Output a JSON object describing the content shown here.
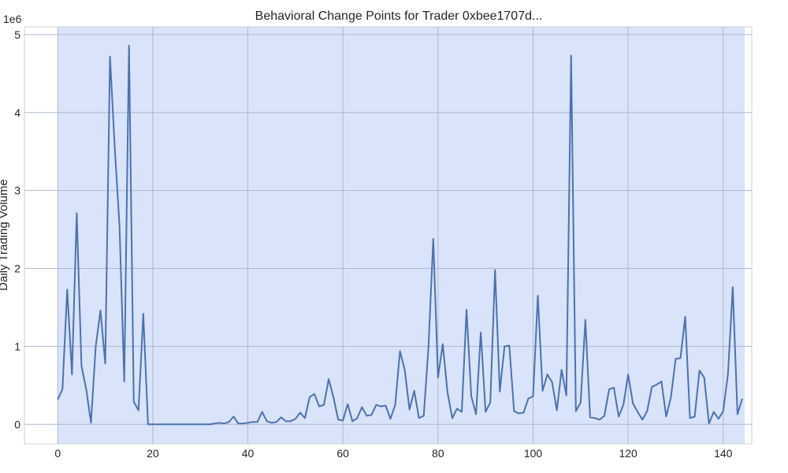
{
  "chart_data": {
    "type": "line",
    "title": "Behavioral Change Points for Trader 0xbee1707d...",
    "xlabel": "",
    "ylabel": "Daily Trading Volume",
    "y_multiplier_label": "1e6",
    "xlim": [
      -7,
      146
    ],
    "ylim": [
      -0.25,
      5.1
    ],
    "x_ticks": [
      0,
      20,
      40,
      60,
      80,
      100,
      120,
      140
    ],
    "y_ticks": [
      0,
      1,
      2,
      3,
      4,
      5
    ],
    "x_tick_labels": [
      "0",
      "20",
      "40",
      "60",
      "80",
      "100",
      "120",
      "140"
    ],
    "y_tick_labels": [
      "0",
      "1",
      "2",
      "3",
      "4",
      "5"
    ],
    "grid": true,
    "highlight_regions": [
      {
        "x_start": 0,
        "x_end": 144.5
      }
    ],
    "colors": {
      "line": "#4c72b0",
      "region": "#d9e3f9",
      "grid": "#b0b8d0"
    },
    "series": [
      {
        "x": [
          0,
          1,
          2,
          3,
          4,
          5,
          6,
          7,
          8,
          9,
          10,
          11,
          12,
          13,
          14,
          15,
          16,
          17,
          18,
          19,
          20,
          21,
          22,
          23,
          24,
          25,
          26,
          27,
          28,
          29,
          30,
          31,
          32,
          33,
          34,
          35,
          36,
          37,
          38,
          39,
          40,
          41,
          42,
          43,
          44,
          45,
          46,
          47,
          48,
          49,
          50,
          51,
          52,
          53,
          54,
          55,
          56,
          57,
          58,
          59,
          60,
          61,
          62,
          63,
          64,
          65,
          66,
          67,
          68,
          69,
          70,
          71,
          72,
          73,
          74,
          75,
          76,
          77,
          78,
          79,
          80,
          81,
          82,
          83,
          84,
          85,
          86,
          87,
          88,
          89,
          90,
          91,
          92,
          93,
          94,
          95,
          96,
          97,
          98,
          99,
          100,
          101,
          102,
          103,
          104,
          105,
          106,
          107,
          108,
          109,
          110,
          111,
          112,
          113,
          114,
          115,
          116,
          117,
          118,
          119,
          120,
          121,
          122,
          123,
          124,
          125,
          126,
          127,
          128,
          129,
          130,
          131,
          132,
          133,
          134,
          135,
          136,
          137,
          138,
          139,
          140,
          141,
          142,
          143,
          144
        ],
        "values": [
          0.32,
          0.45,
          1.73,
          0.64,
          2.71,
          0.75,
          0.45,
          0.02,
          1.0,
          1.46,
          0.78,
          4.72,
          3.55,
          2.55,
          0.55,
          4.86,
          0.29,
          0.18,
          1.42,
          0.0,
          0.0,
          0.0,
          0.0,
          0.0,
          0.0,
          0.0,
          0.0,
          0.0,
          0.0,
          0.0,
          0.0,
          0.0,
          0.0,
          0.01,
          0.02,
          0.01,
          0.03,
          0.1,
          0.01,
          0.01,
          0.02,
          0.03,
          0.03,
          0.16,
          0.04,
          0.02,
          0.03,
          0.09,
          0.04,
          0.04,
          0.07,
          0.15,
          0.08,
          0.35,
          0.39,
          0.23,
          0.25,
          0.58,
          0.35,
          0.06,
          0.05,
          0.26,
          0.04,
          0.08,
          0.22,
          0.11,
          0.12,
          0.25,
          0.23,
          0.24,
          0.07,
          0.25,
          0.94,
          0.7,
          0.19,
          0.43,
          0.08,
          0.11,
          1.0,
          2.38,
          0.6,
          1.03,
          0.41,
          0.08,
          0.2,
          0.16,
          1.47,
          0.36,
          0.13,
          1.18,
          0.16,
          0.28,
          1.98,
          0.42,
          1.0,
          1.01,
          0.17,
          0.14,
          0.15,
          0.33,
          0.36,
          1.65,
          0.43,
          0.64,
          0.54,
          0.18,
          0.7,
          0.37,
          4.73,
          0.17,
          0.28,
          1.34,
          0.09,
          0.08,
          0.06,
          0.11,
          0.45,
          0.47,
          0.1,
          0.25,
          0.64,
          0.27,
          0.16,
          0.06,
          0.17,
          0.48,
          0.51,
          0.55,
          0.1,
          0.35,
          0.84,
          0.85,
          1.38,
          0.08,
          0.1,
          0.69,
          0.6,
          0.01,
          0.16,
          0.07,
          0.17,
          0.65,
          1.76,
          0.13,
          0.33
        ]
      }
    ]
  }
}
